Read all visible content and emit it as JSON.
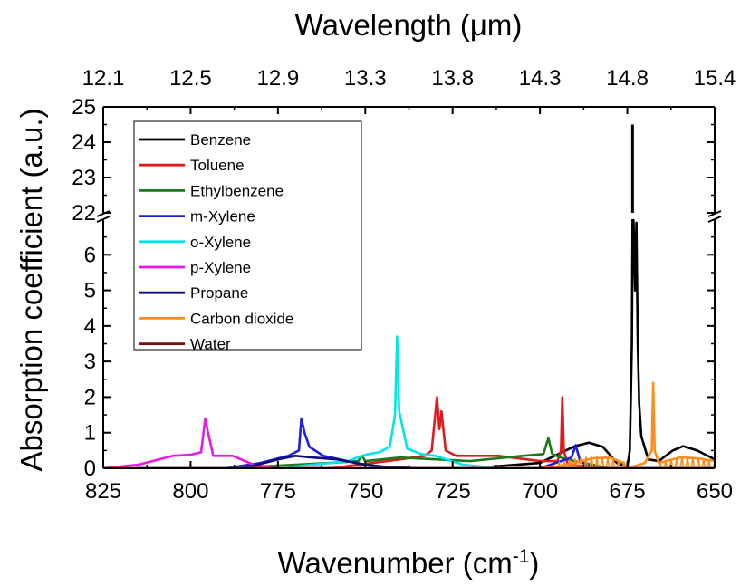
{
  "chart_data": {
    "type": "line",
    "title": "",
    "xlabel": "Wavenumber (cm",
    "xlabel_superscript": "-1",
    "xlabel_close": ")",
    "x2label": "Wavelength (μm)",
    "ylabel": "Absorption coefficient (a.u.)",
    "xlim": [
      825,
      650
    ],
    "x_reversed": true,
    "x_ticks": [
      825,
      800,
      775,
      750,
      725,
      700,
      675,
      650
    ],
    "x2_ticks": [
      "12.1",
      "12.5",
      "12.9",
      "13.3",
      "13.8",
      "14.3",
      "14.8",
      "15.4"
    ],
    "y_axis_break": true,
    "ylim_lower": [
      0,
      7
    ],
    "ylim_upper": [
      22,
      25
    ],
    "y_ticks_lower": [
      0,
      1,
      2,
      3,
      4,
      5,
      6
    ],
    "y_ticks_upper": [
      22,
      23,
      24,
      25
    ],
    "grid": false,
    "legend_position": "top-left",
    "series": [
      {
        "name": "Benzene",
        "color": "#000000",
        "points": [
          [
            825,
            0.0
          ],
          [
            720,
            0.0
          ],
          [
            700,
            0.15
          ],
          [
            690,
            0.62
          ],
          [
            686,
            0.72
          ],
          [
            682,
            0.6
          ],
          [
            678,
            0.15
          ],
          [
            675,
            0.05
          ],
          [
            674.3,
            0.5
          ],
          [
            673.7,
            3.5
          ],
          [
            673.5,
            24.5
          ],
          [
            673.2,
            6.9
          ],
          [
            672.8,
            5.0
          ],
          [
            672.4,
            6.9
          ],
          [
            672,
            3.5
          ],
          [
            671.6,
            1.8
          ],
          [
            671,
            0.9
          ],
          [
            669,
            0.25
          ],
          [
            666,
            0.2
          ],
          [
            662,
            0.5
          ],
          [
            659,
            0.62
          ],
          [
            655,
            0.5
          ],
          [
            650,
            0.25
          ]
        ]
      },
      {
        "name": "Toluene",
        "color": "#e31a1c",
        "points": [
          [
            825,
            0.0
          ],
          [
            760,
            0.0
          ],
          [
            740,
            0.25
          ],
          [
            733,
            0.35
          ],
          [
            731,
            0.5
          ],
          [
            729.5,
            2.0
          ],
          [
            728.8,
            1.1
          ],
          [
            728.2,
            1.6
          ],
          [
            727,
            0.5
          ],
          [
            724,
            0.35
          ],
          [
            712,
            0.35
          ],
          [
            700,
            0.2
          ],
          [
            695,
            0.2
          ],
          [
            694,
            0.5
          ],
          [
            693.6,
            2.0
          ],
          [
            693.2,
            0.5
          ],
          [
            692,
            0.1
          ],
          [
            680,
            0.0
          ],
          [
            650,
            0.0
          ]
        ]
      },
      {
        "name": "Ethylbenzene",
        "color": "#1a7a1a",
        "points": [
          [
            825,
            0.0
          ],
          [
            790,
            0.0
          ],
          [
            770,
            0.1
          ],
          [
            760,
            0.15
          ],
          [
            752,
            0.2
          ],
          [
            751,
            0.35
          ],
          [
            750,
            0.2
          ],
          [
            740,
            0.3
          ],
          [
            720,
            0.2
          ],
          [
            705,
            0.35
          ],
          [
            699,
            0.4
          ],
          [
            697.6,
            0.85
          ],
          [
            696.5,
            0.4
          ],
          [
            694,
            0.3
          ],
          [
            690,
            0.2
          ],
          [
            680,
            0.0
          ],
          [
            650,
            0.0
          ]
        ]
      },
      {
        "name": "m-Xylene",
        "color": "#1f1fd9",
        "points": [
          [
            825,
            0.0
          ],
          [
            790,
            0.0
          ],
          [
            780,
            0.15
          ],
          [
            772,
            0.35
          ],
          [
            769,
            0.5
          ],
          [
            768.3,
            1.4
          ],
          [
            767.4,
            1.0
          ],
          [
            766,
            0.6
          ],
          [
            762,
            0.35
          ],
          [
            755,
            0.2
          ],
          [
            745,
            0.0
          ],
          [
            700,
            0.0
          ],
          [
            691,
            0.3
          ],
          [
            689.8,
            0.65
          ],
          [
            688.5,
            0.2
          ],
          [
            685,
            0.0
          ],
          [
            650,
            0.0
          ]
        ]
      },
      {
        "name": "o-Xylene",
        "color": "#00e5e5",
        "points": [
          [
            825,
            0.0
          ],
          [
            775,
            0.0
          ],
          [
            755,
            0.2
          ],
          [
            750,
            0.38
          ],
          [
            746,
            0.45
          ],
          [
            743,
            0.6
          ],
          [
            741.5,
            1.5
          ],
          [
            740.9,
            3.7
          ],
          [
            740.3,
            1.6
          ],
          [
            738,
            0.55
          ],
          [
            734,
            0.4
          ],
          [
            730,
            0.35
          ],
          [
            722,
            0.1
          ],
          [
            712,
            0.0
          ],
          [
            650,
            0.0
          ]
        ]
      },
      {
        "name": "p-Xylene",
        "color": "#e619e6",
        "points": [
          [
            825,
            0.0
          ],
          [
            815,
            0.1
          ],
          [
            805,
            0.35
          ],
          [
            800,
            0.38
          ],
          [
            797,
            0.45
          ],
          [
            795.8,
            1.4
          ],
          [
            795,
            1.0
          ],
          [
            793.5,
            0.35
          ],
          [
            788,
            0.35
          ],
          [
            782,
            0.1
          ],
          [
            775,
            0.0
          ],
          [
            650,
            0.0
          ]
        ]
      },
      {
        "name": "Propane",
        "color": "#0d0d80",
        "points": [
          [
            825,
            0.0
          ],
          [
            785,
            0.0
          ],
          [
            775,
            0.25
          ],
          [
            770,
            0.35
          ],
          [
            765,
            0.3
          ],
          [
            758,
            0.25
          ],
          [
            750,
            0.1
          ],
          [
            745,
            0.05
          ],
          [
            735,
            0.0
          ],
          [
            650,
            0.0
          ]
        ]
      },
      {
        "name": "Carbon dioxide",
        "color": "#ff8c1a",
        "points": [
          [
            825,
            0.0
          ],
          [
            700,
            0.0
          ],
          [
            695,
            0.05
          ],
          [
            690,
            0.15
          ],
          [
            685,
            0.28
          ],
          [
            680,
            0.3
          ],
          [
            676,
            0.15
          ],
          [
            675,
            0.0
          ],
          [
            670,
            0.15
          ],
          [
            668,
            0.5
          ],
          [
            667.6,
            2.4
          ],
          [
            667.2,
            0.5
          ],
          [
            666,
            0.15
          ],
          [
            660,
            0.3
          ],
          [
            655,
            0.28
          ],
          [
            650,
            0.2
          ]
        ],
        "comb_region": [
          [
            695,
            675
          ],
          [
            666,
            650
          ]
        ]
      },
      {
        "name": "Water",
        "color": "#7a0d0d",
        "points": [
          [
            825,
            0.0
          ],
          [
            650,
            0.0
          ]
        ]
      }
    ]
  }
}
